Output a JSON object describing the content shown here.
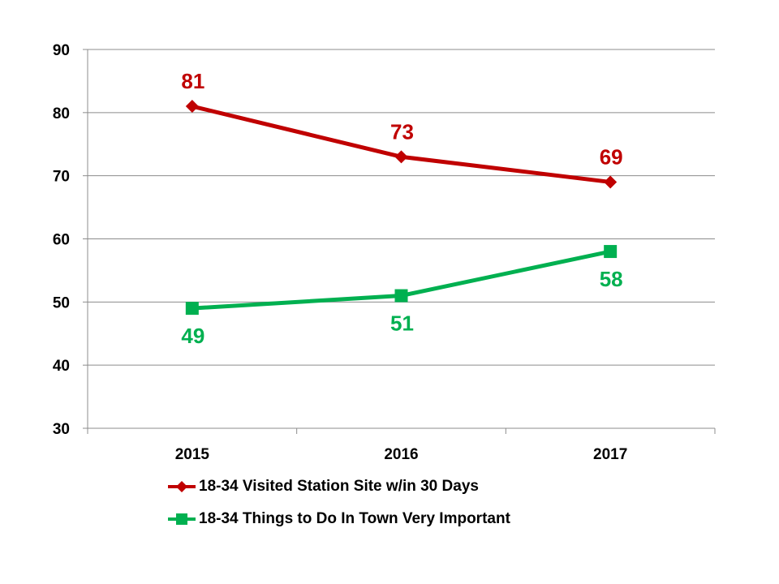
{
  "chart_data": {
    "type": "line",
    "categories": [
      "2015",
      "2016",
      "2017"
    ],
    "ylim": [
      30,
      90
    ],
    "yticks": [
      "90",
      "80",
      "70",
      "60",
      "50",
      "40",
      "30"
    ],
    "grid": true,
    "legend_position": "bottom",
    "series": [
      {
        "name": "18-34 Visited Station Site w/in 30 Days",
        "values": [
          81,
          73,
          69
        ],
        "color": "#c00000",
        "marker": "diamond",
        "label_position": "above"
      },
      {
        "name": "18-34 Things to Do In Town Very Important",
        "values": [
          49,
          51,
          58
        ],
        "color": "#00b050",
        "marker": "square",
        "label_position": "below"
      }
    ]
  }
}
